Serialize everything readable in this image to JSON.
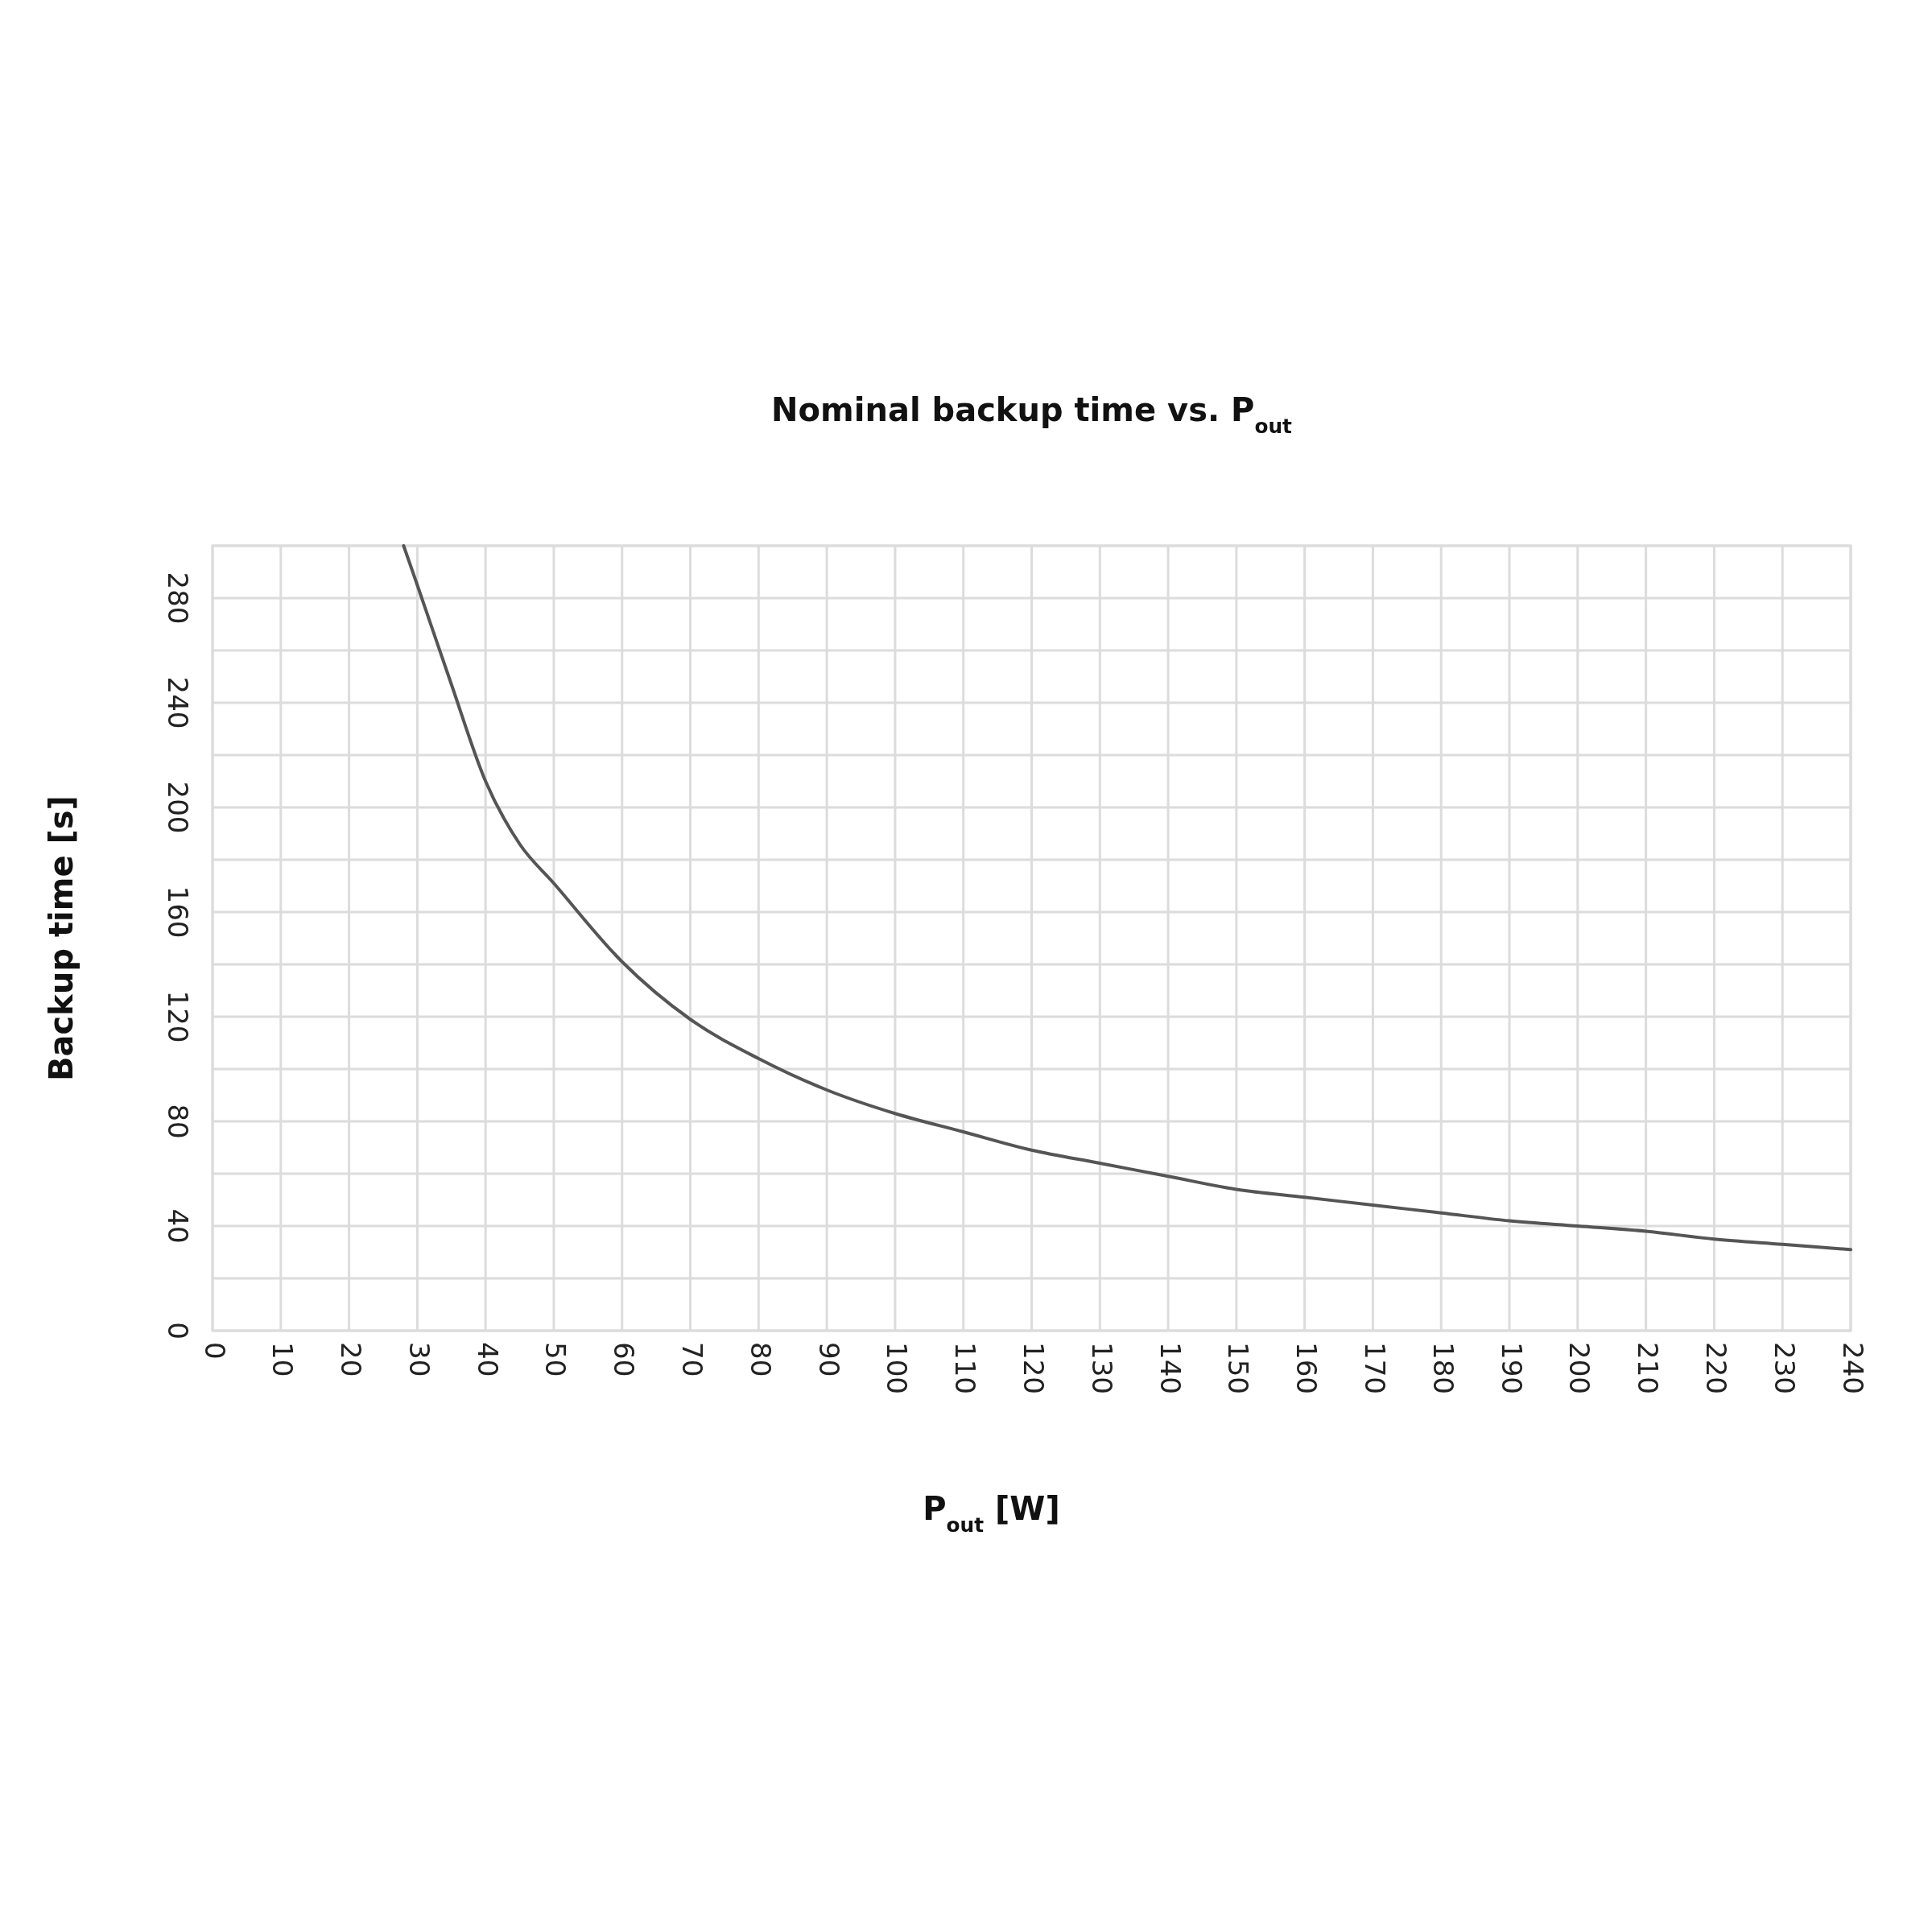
{
  "chart_data": {
    "type": "line",
    "title": "Nominal backup time vs. P$_{out}$",
    "xlabel": "P$_{out}$ [W]",
    "ylabel": "Backup time [s]",
    "x": [
      28,
      30,
      35,
      40,
      45,
      50,
      60,
      70,
      80,
      90,
      100,
      110,
      120,
      130,
      140,
      150,
      160,
      170,
      180,
      190,
      200,
      210,
      220,
      230,
      240
    ],
    "series": [
      {
        "color": "#555555",
        "values": [
          300,
          285,
          247,
          210,
          186,
          171,
          141,
          119,
          104,
          92,
          83,
          76,
          69,
          64,
          59,
          54,
          51,
          48,
          45,
          42,
          40,
          38,
          35,
          33,
          31
        ]
      }
    ],
    "xlim": [
      0,
      240
    ],
    "xticks": [
      0,
      10,
      20,
      30,
      40,
      50,
      60,
      70,
      80,
      90,
      100,
      110,
      120,
      130,
      140,
      150,
      160,
      170,
      180,
      190,
      200,
      210,
      220,
      230,
      240
    ],
    "ylim": [
      0,
      300
    ],
    "yticks": [
      0,
      {
        "value": 20,
        "label": null
      },
      40,
      {
        "value": 60,
        "label": null
      },
      80,
      {
        "value": 100,
        "label": null
      },
      120,
      {
        "value": 140,
        "label": null
      },
      160,
      {
        "value": 180,
        "label": null
      },
      200,
      {
        "value": 220,
        "label": null
      },
      240,
      {
        "value": 260,
        "label": null
      },
      280,
      {
        "value": 300,
        "label": null
      }
    ],
    "grid": true,
    "marker": "none",
    "line_style": "solid"
  }
}
